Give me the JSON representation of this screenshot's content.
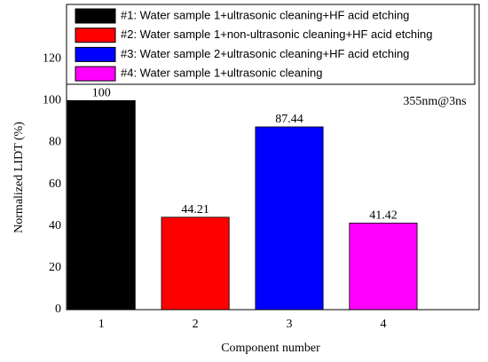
{
  "chart_data": {
    "type": "bar",
    "x_label": "Component number",
    "y_label": "Normalized LIDT (%)",
    "annotation": "355nm@3ns",
    "x": [
      1,
      2,
      3,
      4
    ],
    "xlim": [
      0.63,
      5.02
    ],
    "xticks": [
      1,
      2,
      3,
      4
    ],
    "ylim": [
      0,
      146
    ],
    "yticks": [
      0,
      20,
      40,
      60,
      80,
      100,
      120
    ],
    "series": [
      {
        "name": "#1: Water sample 1+ultrasonic cleaning+HF acid etching",
        "color": "#000000",
        "values": [
          100,
          null,
          null,
          null
        ]
      },
      {
        "name": "#2: Water sample 1+non-ultrasonic cleaning+HF acid etching",
        "color": "#ff0000",
        "values": [
          null,
          44.21,
          null,
          null
        ]
      },
      {
        "name": "#3: Water sample 2+ultrasonic cleaning+HF acid etching",
        "color": "#0000ff",
        "values": [
          null,
          null,
          87.44,
          null
        ]
      },
      {
        "name": "#4: Water sample 1+ultrasonic cleaning",
        "color": "#ff00ff",
        "values": [
          null,
          null,
          null,
          41.42
        ]
      }
    ]
  }
}
